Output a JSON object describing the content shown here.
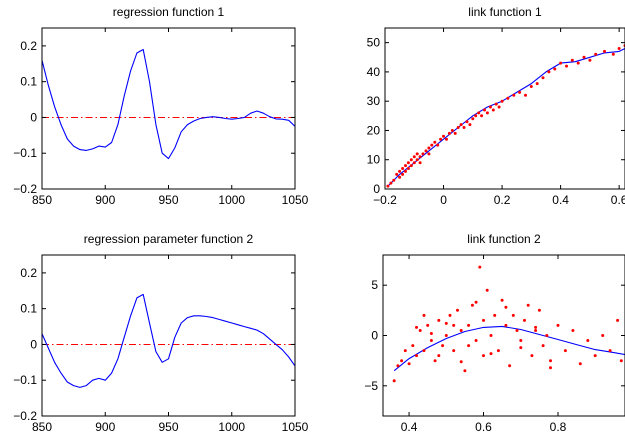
{
  "chart_data": [
    {
      "type": "line",
      "title": "regression function 1",
      "xlim": [
        850,
        1050
      ],
      "ylim": [
        -0.2,
        0.25
      ],
      "xticks": [
        850,
        900,
        950,
        1000,
        1050
      ],
      "yticks": [
        -0.2,
        -0.1,
        0,
        0.1,
        0.2
      ],
      "xtick_labels": [
        "850",
        "900",
        "950",
        "1000",
        "1050"
      ],
      "ytick_labels": [
        "−0.2",
        "−0.1",
        "0",
        "0.1",
        "0.2"
      ],
      "reference_line": {
        "y": 0,
        "style": "dash-dot",
        "color": "#ff0000"
      },
      "series": [
        {
          "color": "#0000ff",
          "x": [
            850,
            855,
            860,
            865,
            870,
            875,
            880,
            885,
            890,
            895,
            900,
            905,
            910,
            915,
            920,
            925,
            930,
            935,
            940,
            945,
            950,
            955,
            960,
            965,
            970,
            975,
            980,
            985,
            990,
            995,
            1000,
            1005,
            1010,
            1015,
            1020,
            1025,
            1030,
            1035,
            1040,
            1045,
            1050
          ],
          "y": [
            0.16,
            0.09,
            0.03,
            -0.02,
            -0.06,
            -0.08,
            -0.09,
            -0.092,
            -0.088,
            -0.08,
            -0.083,
            -0.07,
            -0.02,
            0.06,
            0.13,
            0.18,
            0.19,
            0.1,
            -0.02,
            -0.1,
            -0.115,
            -0.085,
            -0.04,
            -0.02,
            -0.01,
            -0.003,
            0.0,
            0.002,
            0.0,
            -0.003,
            -0.005,
            -0.003,
            0.0,
            0.012,
            0.018,
            0.012,
            0.002,
            -0.004,
            -0.005,
            -0.008,
            -0.025
          ]
        }
      ]
    },
    {
      "type": "scatter",
      "title": "link function 1",
      "xlim": [
        -0.2,
        0.62
      ],
      "ylim": [
        0,
        55
      ],
      "xticks": [
        -0.2,
        0,
        0.2,
        0.4,
        0.6
      ],
      "yticks": [
        0,
        10,
        20,
        30,
        40,
        50
      ],
      "xtick_labels": [
        "−0.2",
        "0",
        "0.2",
        "0.4",
        "0.6"
      ],
      "ytick_labels": [
        "0",
        "10",
        "20",
        "30",
        "40",
        "50"
      ],
      "series": [
        {
          "type": "line",
          "color": "#0000ff",
          "x": [
            -0.19,
            -0.15,
            -0.1,
            -0.05,
            0,
            0.05,
            0.1,
            0.15,
            0.2,
            0.25,
            0.3,
            0.35,
            0.4,
            0.45,
            0.5,
            0.55,
            0.6,
            0.62
          ],
          "y": [
            1,
            5,
            9,
            13,
            17,
            21,
            25,
            28,
            30,
            33,
            36,
            40,
            43,
            43.5,
            45,
            46.5,
            47,
            48
          ]
        },
        {
          "type": "scatter",
          "color": "#ff0000",
          "x": [
            -0.19,
            -0.18,
            -0.17,
            -0.16,
            -0.15,
            -0.15,
            -0.14,
            -0.14,
            -0.13,
            -0.13,
            -0.12,
            -0.12,
            -0.11,
            -0.11,
            -0.1,
            -0.1,
            -0.09,
            -0.09,
            -0.08,
            -0.08,
            -0.07,
            -0.06,
            -0.05,
            -0.05,
            -0.04,
            -0.03,
            -0.02,
            -0.01,
            0,
            0.01,
            0.02,
            0.03,
            0.04,
            0.05,
            0.06,
            0.07,
            0.08,
            0.09,
            0.1,
            0.11,
            0.12,
            0.13,
            0.14,
            0.15,
            0.16,
            0.17,
            0.18,
            0.19,
            0.2,
            0.22,
            0.24,
            0.26,
            0.28,
            0.3,
            0.32,
            0.34,
            0.36,
            0.38,
            0.4,
            0.42,
            0.44,
            0.46,
            0.48,
            0.5,
            0.52,
            0.55,
            0.58,
            0.6,
            0.62
          ],
          "y": [
            1,
            2,
            3,
            5,
            6,
            4,
            7,
            5,
            8,
            6,
            9,
            7,
            10,
            8,
            9,
            11,
            10,
            12,
            11,
            9,
            12,
            13,
            14,
            12,
            15,
            16,
            15,
            17,
            18,
            17,
            19,
            20,
            19,
            21,
            22,
            21,
            23,
            22,
            24,
            25,
            26,
            25,
            27,
            26,
            28,
            27,
            29,
            28,
            30,
            31,
            32,
            33,
            32,
            35,
            36,
            38,
            40,
            41,
            43,
            42,
            44,
            43,
            45,
            44,
            46,
            47,
            46,
            48,
            49
          ]
        }
      ]
    },
    {
      "type": "line",
      "title": "regression parameter function 2",
      "xlim": [
        850,
        1050
      ],
      "ylim": [
        -0.2,
        0.25
      ],
      "xticks": [
        850,
        900,
        950,
        1000,
        1050
      ],
      "yticks": [
        -0.2,
        -0.1,
        0,
        0.1,
        0.2
      ],
      "xtick_labels": [
        "850",
        "900",
        "950",
        "1000",
        "1050"
      ],
      "ytick_labels": [
        "−0.2",
        "−0.1",
        "0",
        "0.1",
        "0.2"
      ],
      "reference_line": {
        "y": 0,
        "style": "dash-dot",
        "color": "#ff0000"
      },
      "series": [
        {
          "color": "#0000ff",
          "x": [
            850,
            855,
            860,
            865,
            870,
            875,
            880,
            885,
            890,
            895,
            900,
            905,
            910,
            915,
            920,
            925,
            930,
            935,
            940,
            945,
            950,
            955,
            960,
            965,
            970,
            975,
            980,
            985,
            990,
            995,
            1000,
            1005,
            1010,
            1015,
            1020,
            1025,
            1030,
            1035,
            1040,
            1045,
            1050
          ],
          "y": [
            0.03,
            -0.01,
            -0.05,
            -0.08,
            -0.105,
            -0.115,
            -0.12,
            -0.115,
            -0.1,
            -0.095,
            -0.1,
            -0.08,
            -0.04,
            0.02,
            0.08,
            0.13,
            0.14,
            0.06,
            -0.02,
            -0.05,
            -0.04,
            0.02,
            0.06,
            0.075,
            0.08,
            0.08,
            0.078,
            0.075,
            0.07,
            0.065,
            0.06,
            0.055,
            0.05,
            0.045,
            0.04,
            0.03,
            0.015,
            0.0,
            -0.015,
            -0.035,
            -0.06
          ]
        }
      ]
    },
    {
      "type": "scatter",
      "title": "link function 2",
      "xlim": [
        0.33,
        0.98
      ],
      "ylim": [
        -8,
        8
      ],
      "xticks": [
        0.4,
        0.6,
        0.8
      ],
      "yticks": [
        -5,
        0,
        5
      ],
      "xtick_labels": [
        "0.4",
        "0.6",
        "0.8"
      ],
      "ytick_labels": [
        "−5",
        "0",
        "5"
      ],
      "series": [
        {
          "type": "line",
          "color": "#0000ff",
          "x": [
            0.36,
            0.4,
            0.45,
            0.5,
            0.55,
            0.6,
            0.65,
            0.7,
            0.75,
            0.8,
            0.85,
            0.9,
            0.95,
            0.98
          ],
          "y": [
            -3.5,
            -2.3,
            -1.2,
            -0.3,
            0.4,
            0.8,
            0.9,
            0.6,
            0.1,
            -0.4,
            -0.9,
            -1.4,
            -1.7,
            -1.9
          ]
        },
        {
          "type": "scatter",
          "color": "#ff0000",
          "x": [
            0.36,
            0.37,
            0.38,
            0.39,
            0.4,
            0.41,
            0.42,
            0.43,
            0.44,
            0.45,
            0.46,
            0.47,
            0.48,
            0.49,
            0.5,
            0.51,
            0.52,
            0.53,
            0.54,
            0.55,
            0.56,
            0.57,
            0.58,
            0.59,
            0.6,
            0.6,
            0.61,
            0.62,
            0.63,
            0.64,
            0.65,
            0.66,
            0.67,
            0.68,
            0.69,
            0.7,
            0.71,
            0.72,
            0.73,
            0.74,
            0.75,
            0.76,
            0.77,
            0.78,
            0.8,
            0.82,
            0.84,
            0.86,
            0.88,
            0.9,
            0.92,
            0.94,
            0.96,
            0.97,
            0.44,
            0.48,
            0.52,
            0.56,
            0.62,
            0.66,
            0.7,
            0.74,
            0.78,
            0.58,
            0.54,
            0.5,
            0.46,
            0.42
          ],
          "y": [
            -4.5,
            -3.0,
            -2.5,
            -1.5,
            -2.8,
            -1.0,
            -2.0,
            0.5,
            -1.5,
            1.0,
            -0.5,
            -2.5,
            1.5,
            -1.0,
            0.0,
            2.0,
            -1.5,
            2.5,
            0.5,
            -3.5,
            1.0,
            3.0,
            -0.5,
            6.8,
            1.5,
            -2.0,
            4.5,
            0.0,
            2.0,
            -1.5,
            3.5,
            1.0,
            -3.0,
            2.0,
            0.5,
            -0.5,
            1.5,
            3.0,
            -2.0,
            0.5,
            2.5,
            -1.0,
            0.0,
            -2.5,
            1.0,
            -1.5,
            0.5,
            -2.8,
            -0.5,
            -2.0,
            0.0,
            -1.5,
            1.5,
            -2.5,
            2.0,
            -2.0,
            1.0,
            -1.0,
            -1.8,
            2.8,
            -1.2,
            0.8,
            -3.2,
            3.3,
            -2.6,
            1.2,
            0.2,
            0.8
          ]
        }
      ]
    }
  ]
}
